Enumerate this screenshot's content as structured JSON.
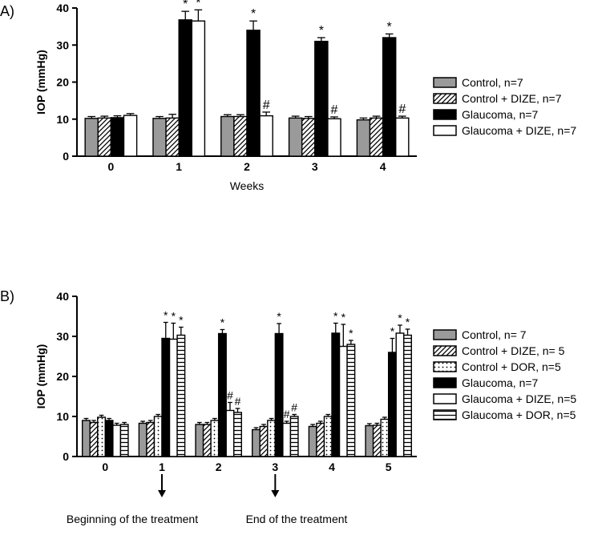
{
  "panelA": {
    "label": "A)",
    "type": "bar",
    "ylabel": "IOP (mmHg)",
    "xlabel": "Weeks",
    "ylim": [
      0,
      40
    ],
    "yticks": [
      0,
      10,
      20,
      30,
      40
    ],
    "xcategories": [
      "0",
      "1",
      "2",
      "3",
      "4"
    ],
    "groups": [
      {
        "name": "Control, n=7",
        "fill": "#9a9a9a",
        "pattern": "none"
      },
      {
        "name": "Control + DIZE, n=7",
        "fill": "#ffffff",
        "pattern": "diag"
      },
      {
        "name": "Glaucoma, n=7",
        "fill": "#000000",
        "pattern": "none"
      },
      {
        "name": "Glaucoma + DIZE, n=7",
        "fill": "#ffffff",
        "pattern": "none"
      }
    ],
    "data": [
      [
        {
          "v": 10.2,
          "e": 0.5
        },
        {
          "v": 10.3,
          "e": 0.5
        },
        {
          "v": 10.4,
          "e": 0.5
        },
        {
          "v": 11.0,
          "e": 0.5
        }
      ],
      [
        {
          "v": 10.2,
          "e": 0.5
        },
        {
          "v": 10.3,
          "e": 1.0
        },
        {
          "v": 36.8,
          "e": 2.3,
          "sig": "*"
        },
        {
          "v": 36.5,
          "e": 3.0,
          "sig": "*"
        }
      ],
      [
        {
          "v": 10.7,
          "e": 0.5
        },
        {
          "v": 10.7,
          "e": 0.5
        },
        {
          "v": 34.0,
          "e": 2.5,
          "sig": "*"
        },
        {
          "v": 10.9,
          "e": 1.0,
          "sig": "#"
        }
      ],
      [
        {
          "v": 10.3,
          "e": 0.5
        },
        {
          "v": 10.2,
          "e": 0.5
        },
        {
          "v": 31.0,
          "e": 1.0,
          "sig": "*"
        },
        {
          "v": 10.1,
          "e": 0.5,
          "sig": "#"
        }
      ],
      [
        {
          "v": 9.8,
          "e": 0.5
        },
        {
          "v": 10.3,
          "e": 0.5
        },
        {
          "v": 32.0,
          "e": 1.0,
          "sig": "*"
        },
        {
          "v": 10.3,
          "e": 0.5,
          "sig": "#"
        }
      ]
    ],
    "bar_width": 0.19,
    "label_fontsize": 14,
    "tick_fontsize": 14,
    "sig_fontsize": 16
  },
  "panelB": {
    "label": "B)",
    "type": "bar",
    "ylabel": "IOP (mmHg)",
    "ylim": [
      0,
      40
    ],
    "yticks": [
      0,
      10,
      20,
      30,
      40
    ],
    "xcategories": [
      "0",
      "1",
      "2",
      "3",
      "4",
      "5"
    ],
    "groups": [
      {
        "name": "Control, n= 7",
        "fill": "#9a9a9a",
        "pattern": "none"
      },
      {
        "name": "Control + DIZE, n= 5",
        "fill": "#ffffff",
        "pattern": "diag"
      },
      {
        "name": "Control + DOR, n=5",
        "fill": "#ffffff",
        "pattern": "dots"
      },
      {
        "name": "Glaucoma, n=7",
        "fill": "#000000",
        "pattern": "none"
      },
      {
        "name": "Glaucoma + DIZE, n=5",
        "fill": "#ffffff",
        "pattern": "none"
      },
      {
        "name": "Glaucoma + DOR, n=5",
        "fill": "#ffffff",
        "pattern": "horiz"
      }
    ],
    "data": [
      [
        {
          "v": 9.0,
          "e": 0.5
        },
        {
          "v": 8.5,
          "e": 0.5
        },
        {
          "v": 9.8,
          "e": 0.5
        },
        {
          "v": 9.0,
          "e": 0.5
        },
        {
          "v": 7.8,
          "e": 0.5
        },
        {
          "v": 8.0,
          "e": 0.5
        }
      ],
      [
        {
          "v": 8.3,
          "e": 0.5
        },
        {
          "v": 8.5,
          "e": 0.5
        },
        {
          "v": 10.0,
          "e": 0.5
        },
        {
          "v": 29.5,
          "e": 4.0,
          "sig": "*"
        },
        {
          "v": 29.3,
          "e": 4.0,
          "sig": "*"
        },
        {
          "v": 30.3,
          "e": 2.0,
          "sig": "*"
        }
      ],
      [
        {
          "v": 8.0,
          "e": 0.5
        },
        {
          "v": 8.0,
          "e": 0.5
        },
        {
          "v": 9.0,
          "e": 0.5
        },
        {
          "v": 30.7,
          "e": 1.0,
          "sig": "*"
        },
        {
          "v": 11.5,
          "e": 2.0,
          "sig": "#"
        },
        {
          "v": 11.0,
          "e": 1.0,
          "sig": "#"
        }
      ],
      [
        {
          "v": 6.7,
          "e": 0.5
        },
        {
          "v": 7.5,
          "e": 0.5
        },
        {
          "v": 9.0,
          "e": 0.5
        },
        {
          "v": 30.7,
          "e": 2.5,
          "sig": "*"
        },
        {
          "v": 8.3,
          "e": 0.5,
          "sig": "#"
        },
        {
          "v": 10.0,
          "e": 0.5,
          "sig": "#"
        }
      ],
      [
        {
          "v": 7.5,
          "e": 0.5
        },
        {
          "v": 8.3,
          "e": 0.5
        },
        {
          "v": 10.0,
          "e": 0.5
        },
        {
          "v": 30.8,
          "e": 2.5,
          "sig": "*"
        },
        {
          "v": 27.5,
          "e": 5.5,
          "sig": "*"
        },
        {
          "v": 28.0,
          "e": 1.0,
          "sig": "*"
        }
      ],
      [
        {
          "v": 7.7,
          "e": 0.5
        },
        {
          "v": 7.8,
          "e": 0.5
        },
        {
          "v": 9.3,
          "e": 0.5
        },
        {
          "v": 26.0,
          "e": 3.5,
          "sig": "*"
        },
        {
          "v": 30.8,
          "e": 2.0,
          "sig": "*"
        },
        {
          "v": 30.3,
          "e": 1.5,
          "sig": "*"
        }
      ]
    ],
    "bar_width": 0.135,
    "label_fontsize": 14,
    "tick_fontsize": 14,
    "sig_fontsize": 14,
    "arrows": {
      "begin": {
        "label": "Beginning of the treatment",
        "x_index": 1
      },
      "end": {
        "label": "End of the treatment",
        "x_index": 3
      }
    }
  },
  "colors": {
    "axis": "#000000",
    "text": "#000000",
    "background": "#ffffff"
  }
}
